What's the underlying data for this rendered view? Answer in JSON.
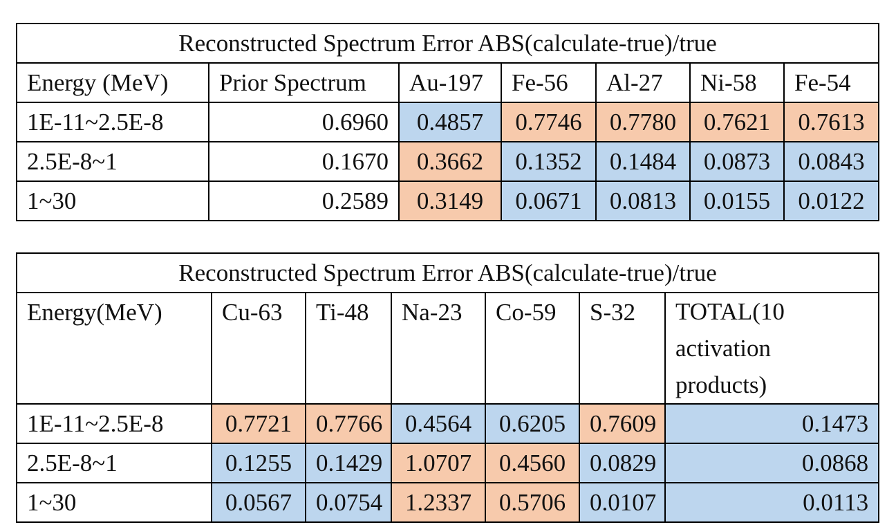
{
  "colors": {
    "low_error": "#bdd6ee",
    "high_error": "#f7caac",
    "border": "#000000"
  },
  "table1": {
    "title": "Reconstructed Spectrum Error ABS(calculate-true)/true",
    "headers": [
      "Energy (MeV)",
      "Prior Spectrum",
      "Au-197",
      "Fe-56",
      "Al-27",
      "Ni-58",
      "Fe-54"
    ],
    "rows": [
      [
        "1E-11~2.5E-8",
        "0.6960",
        "0.4857",
        "0.7746",
        "0.7780",
        "0.7621",
        "0.7613"
      ],
      [
        "2.5E-8~1",
        "0.1670",
        "0.3662",
        "0.1352",
        "0.1484",
        "0.0873",
        "0.0843"
      ],
      [
        "1~30",
        "0.2589",
        "0.3149",
        "0.0671",
        "0.0813",
        "0.0155",
        "0.0122"
      ]
    ],
    "highlight": [
      [
        "",
        "",
        "blue",
        "orange",
        "orange",
        "orange",
        "orange"
      ],
      [
        "",
        "",
        "orange",
        "blue",
        "blue",
        "blue",
        "blue"
      ],
      [
        "",
        "",
        "orange",
        "blue",
        "blue",
        "blue",
        "blue"
      ]
    ]
  },
  "table2": {
    "title": "Reconstructed Spectrum Error ABS(calculate-true)/true",
    "headers": [
      "Energy(MeV)",
      "Cu-63",
      "Ti-48",
      "Na-23",
      "Co-59",
      "S-32",
      "TOTAL(10 activation products)"
    ],
    "rows": [
      [
        "1E-11~2.5E-8",
        "0.7721",
        "0.7766",
        "0.4564",
        "0.6205",
        "0.7609",
        "0.1473"
      ],
      [
        "2.5E-8~1",
        "0.1255",
        "0.1429",
        "1.0707",
        "0.4560",
        "0.0829",
        "0.0868"
      ],
      [
        "1~30",
        "0.0567",
        "0.0754",
        "1.2337",
        "0.5706",
        "0.0107",
        "0.0113"
      ]
    ],
    "highlight": [
      [
        "",
        "orange",
        "orange",
        "blue",
        "blue",
        "orange",
        "blue"
      ],
      [
        "",
        "blue",
        "blue",
        "orange",
        "orange",
        "blue",
        "blue"
      ],
      [
        "",
        "blue",
        "blue",
        "orange",
        "orange",
        "blue",
        "blue"
      ]
    ]
  }
}
